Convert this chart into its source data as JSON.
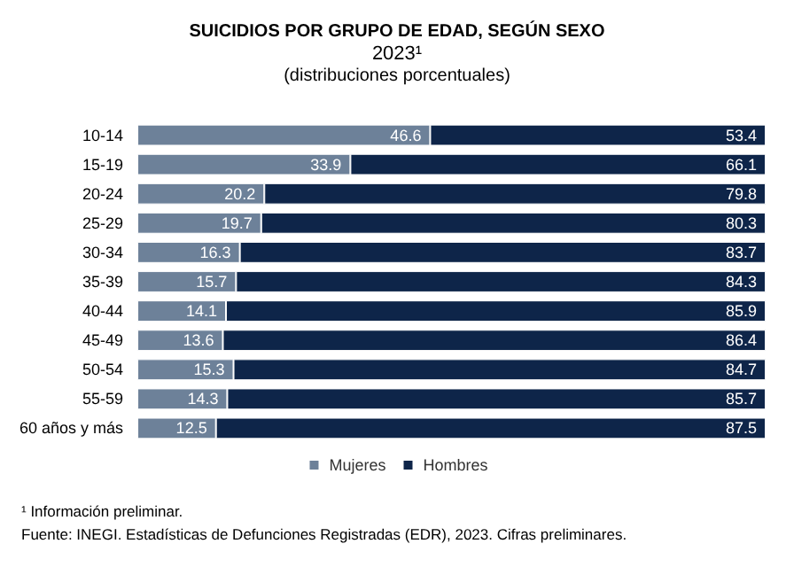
{
  "chart_data": {
    "type": "bar",
    "orientation": "horizontal",
    "stacked": true,
    "data_labels": true,
    "legend": "bottom",
    "title": "SUICIDIOS POR GRUPO DE EDAD, SEGÚN SEXO",
    "subtitle": "2023¹",
    "annotations": [
      "(distribuciones porcentuales)",
      "¹ Información preliminar.",
      "Fuente: INEGI. Estadísticas de Defunciones Registradas (EDR), 2023. Cifras preliminares."
    ],
    "categories": [
      "10-14",
      "15-19",
      "20-24",
      "25-29",
      "30-34",
      "35-39",
      "40-44",
      "45-49",
      "50-54",
      "55-59",
      "60 años y más"
    ],
    "series": [
      {
        "name": "Mujeres",
        "color": "#6d8199",
        "values": [
          46.6,
          33.9,
          20.2,
          19.7,
          16.3,
          15.7,
          14.1,
          13.6,
          15.3,
          14.3,
          12.5
        ]
      },
      {
        "name": "Hombres",
        "color": "#0e2549",
        "values": [
          53.4,
          66.1,
          79.8,
          80.3,
          83.7,
          84.3,
          85.9,
          86.4,
          84.7,
          85.7,
          87.5
        ]
      }
    ]
  }
}
